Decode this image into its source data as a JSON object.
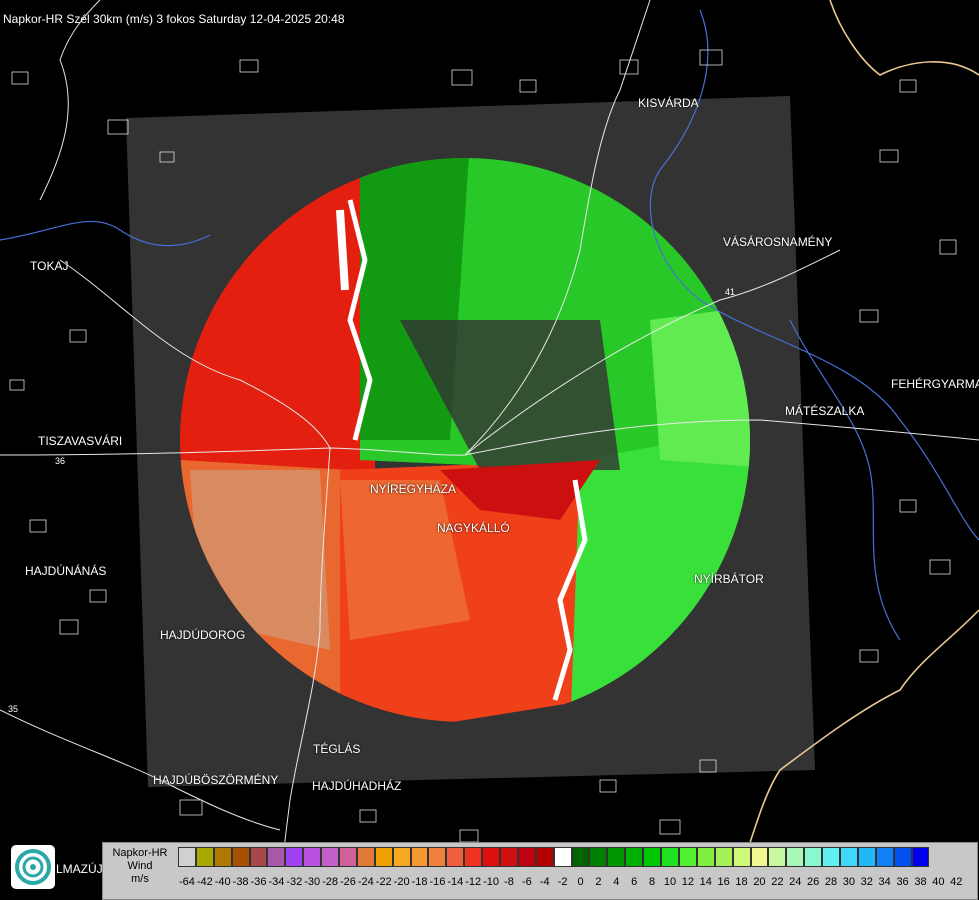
{
  "title": "Napkor-HR Szél 30km (m/s) 3 fokos Saturday 12-04-2025 20:48",
  "cities": [
    {
      "id": "kisvarda",
      "name": "KISVÁRDA"
    },
    {
      "id": "tokaj",
      "name": "TOKAJ"
    },
    {
      "id": "vasarosnameny",
      "name": "VÁSÁROSNAMÉNY"
    },
    {
      "id": "fehergyarmat",
      "name": "FEHÉRGYARMA"
    },
    {
      "id": "mateszalka",
      "name": "MÁTÉSZALKA"
    },
    {
      "id": "tiszavasvari",
      "name": "TISZAVASVÁRI"
    },
    {
      "id": "nyiregyhaza",
      "name": "NYÍREGYHÁZA"
    },
    {
      "id": "nagykallo",
      "name": "NAGYKÁLLÓ"
    },
    {
      "id": "hajdunanas",
      "name": "HAJDÚNÁNÁS"
    },
    {
      "id": "nyirbator",
      "name": "NYÍRBÁTOR"
    },
    {
      "id": "hajdudorog",
      "name": "HAJDÚDOROG"
    },
    {
      "id": "teglas",
      "name": "TÉGLÁS"
    },
    {
      "id": "hajduboszormeny",
      "name": "HAJDÚBÖSZÖRMÉNY"
    },
    {
      "id": "hajduhadhaz",
      "name": "HAJDÚHADHÁZ"
    },
    {
      "id": "mazujvar",
      "name": "LMAZÚJVÁR"
    }
  ],
  "road_numbers": [
    "41",
    "36",
    "35"
  ],
  "legend": {
    "line1": "Napkor-HR",
    "line2": "Wind",
    "line3": "m/s",
    "swatch_colors": [
      "#d0d0d0",
      "#a8a800",
      "#b07800",
      "#a85000",
      "#a84848",
      "#a858a8",
      "#a040f0",
      "#b850e0",
      "#c060c8",
      "#d06098",
      "#e07838",
      "#f0a000",
      "#f8a820",
      "#f89830",
      "#f08040",
      "#f06040",
      "#f03020",
      "#e01010",
      "#d01010",
      "#c00010",
      "#b00000",
      "#ffffff",
      "#006400",
      "#008000",
      "#009600",
      "#00b000",
      "#00c800",
      "#20e020",
      "#50f030",
      "#80f040",
      "#a8f058",
      "#d0f878",
      "#f0f890",
      "#c8f8a0",
      "#a8f8b8",
      "#88f8d0",
      "#60f0f0",
      "#40d8f8",
      "#20b8f8",
      "#1080f8",
      "#0050f0",
      "#0000f0"
    ],
    "ticks": [
      "-64",
      "-42",
      "-40",
      "-38",
      "-36",
      "-34",
      "-32",
      "-30",
      "-28",
      "-26",
      "-24",
      "-22",
      "-20",
      "-18",
      "-16",
      "-14",
      "-12",
      "-10",
      "-8",
      "-6",
      "-4",
      "-2",
      "0",
      "2",
      "4",
      "6",
      "8",
      "10",
      "12",
      "14",
      "16",
      "18",
      "20",
      "22",
      "24",
      "26",
      "28",
      "30",
      "32",
      "34",
      "36",
      "38",
      "40",
      "42"
    ]
  }
}
